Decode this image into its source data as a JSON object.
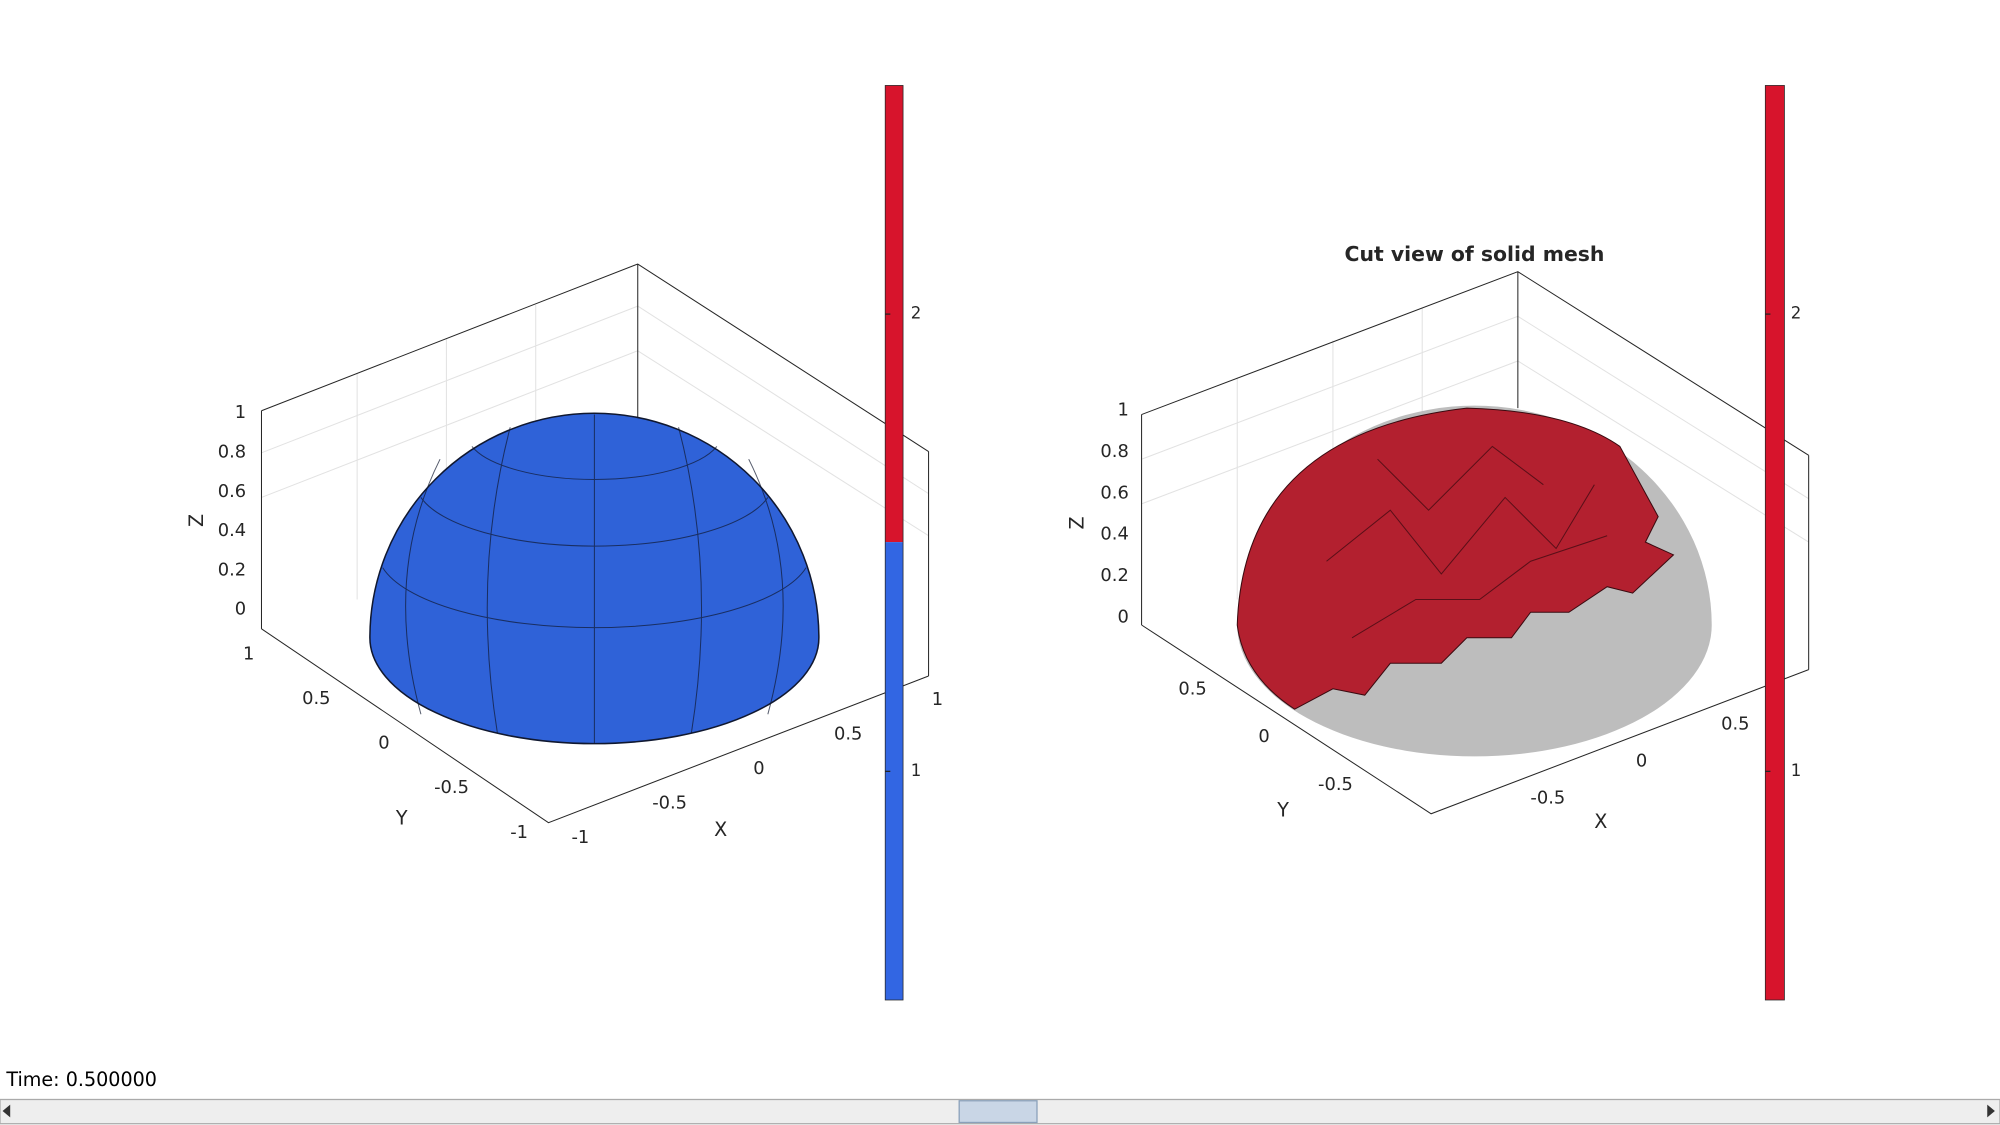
{
  "panels": [
    {
      "axes": {
        "xlabel": "X",
        "ylabel": "Y",
        "zlabel": "Z",
        "xticks": [
          -1,
          -0.5,
          0,
          0.5,
          1
        ],
        "yticks": [
          -1,
          -0.5,
          0,
          0.5,
          1
        ],
        "zticks": [
          0,
          0.2,
          0.4,
          0.6,
          0.8,
          1
        ]
      },
      "colorbar": {
        "lim": [
          0.5,
          2.5
        ],
        "ticks": [
          1,
          2
        ]
      }
    },
    {
      "title": "Cut view of solid mesh",
      "axes": {
        "xlabel": "X",
        "ylabel": "Y",
        "zlabel": "Z",
        "xticks": [
          -0.5,
          0,
          0.5
        ],
        "yticks": [
          -0.5,
          0,
          0.5
        ],
        "zticks": [
          0,
          0.2,
          0.4,
          0.6,
          0.8,
          1
        ]
      },
      "colorbar": {
        "lim": [
          0.5,
          2.5
        ],
        "ticks": [
          1,
          2
        ]
      }
    }
  ],
  "status": "Time: 0.500000"
}
